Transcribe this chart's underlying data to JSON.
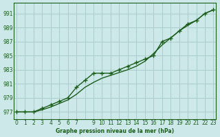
{
  "title": "Graphe pression niveau de la mer (hPa)",
  "bg_color": "#cce8e8",
  "grid_color": "#aacccc",
  "line_color": "#1a5c1a",
  "x_ticks": [
    0,
    1,
    2,
    3,
    4,
    5,
    6,
    7,
    8,
    9,
    10,
    11,
    12,
    13,
    14,
    15,
    16,
    17,
    18,
    19,
    20,
    21,
    22,
    23
  ],
  "x_tick_labels": [
    "0",
    "1",
    "2",
    "3",
    "4",
    "5",
    "6",
    "7",
    "",
    "9",
    "10",
    "11",
    "12",
    "13",
    "14",
    "15",
    "16",
    "17",
    "18",
    "19",
    "20",
    "21",
    "22",
    "23"
  ],
  "xlim": [
    -0.3,
    23.3
  ],
  "ylim": [
    976.0,
    992.5
  ],
  "y_ticks": [
    977,
    979,
    981,
    983,
    985,
    987,
    989,
    991
  ],
  "hours": [
    0,
    1,
    2,
    3,
    4,
    5,
    6,
    7,
    8,
    9,
    10,
    11,
    12,
    13,
    14,
    15,
    16,
    17,
    18,
    19,
    20,
    21,
    22,
    23
  ],
  "values_main": [
    977.0,
    977.0,
    977.0,
    977.5,
    978.0,
    978.5,
    979.0,
    980.5,
    981.5,
    982.5,
    982.5,
    982.5,
    983.0,
    983.5,
    984.0,
    984.5,
    985.0,
    987.0,
    987.5,
    988.5,
    989.5,
    990.0,
    991.0,
    991.5
  ],
  "values_smooth": [
    977.0,
    977.0,
    977.0,
    977.3,
    977.7,
    978.2,
    978.7,
    979.5,
    980.5,
    981.2,
    981.8,
    982.2,
    982.6,
    983.0,
    983.5,
    984.2,
    985.3,
    986.5,
    987.5,
    988.5,
    989.3,
    990.0,
    991.0,
    991.5
  ]
}
